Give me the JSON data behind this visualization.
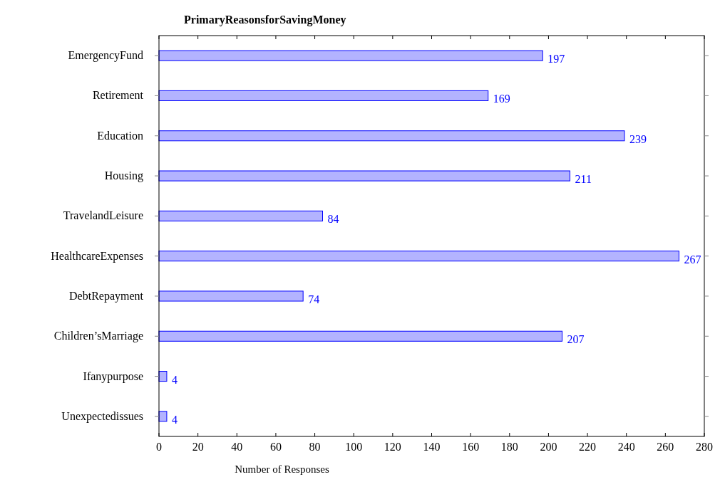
{
  "chart_data": {
    "type": "bar",
    "orientation": "horizontal",
    "title": "PrimaryReasonsforSavingMoney",
    "xlabel": "Number of Responses",
    "categories": [
      "EmergencyFund",
      "Retirement",
      "Education",
      "Housing",
      "TravelandLeisure",
      "HealthcareExpenses",
      "DebtRepayment",
      "Children’sMarriage",
      "Ifanypurpose",
      "Unexpectedissues"
    ],
    "values": [
      197,
      169,
      239,
      211,
      84,
      267,
      74,
      207,
      4,
      4
    ],
    "color": "#b3b3ff",
    "xlim": [
      0,
      280
    ],
    "xticks": [
      0,
      20,
      40,
      60,
      80,
      100,
      120,
      140,
      160,
      180,
      200,
      220,
      240,
      260,
      280
    ],
    "data_labels": true,
    "grid": false
  }
}
